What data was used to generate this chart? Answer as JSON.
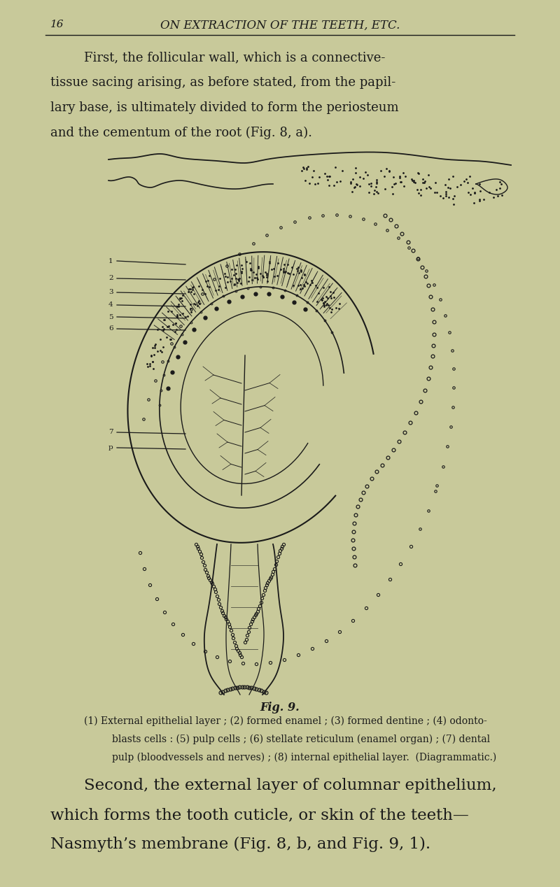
{
  "background_color": "#c8c99a",
  "text_color": "#1a1a1a",
  "header_number": "16",
  "header_title": "ON EXTRACTION OF THE TEETH, ETC.",
  "para1_lines": [
    "First, the follicular wall, which is a connective-",
    "tissue sacing arising, as before stated, from the papil-",
    "lary base, is ultimately divided to form the periosteum",
    "and the cementum of the root (Fig. 8, a)."
  ],
  "fig_caption_title": "Fig. 9.",
  "fig_caption_line1": "(1) External epithelial layer ; (2) formed enamel ; (3) formed dentine ; (4) odonto-",
  "fig_caption_line2": "blasts cells : (5) pulp cells ; (6) stellate reticulum (enamel organ) ; (7) dental",
  "fig_caption_line3": "pulp (bloodvessels and nerves) ; (8) internal epithelial layer.  (Diagrammatic.)",
  "para2_line1": "Second, the external layer of columnar epithelium,",
  "para2_line2": "which forms the tooth cuticle, or skin of the teeth—",
  "para2_line3": "Nasmyth’s membrane (Fig. 8, b, and Fig. 9, 1).",
  "figsize": [
    8.0,
    12.68
  ],
  "dpi": 100
}
